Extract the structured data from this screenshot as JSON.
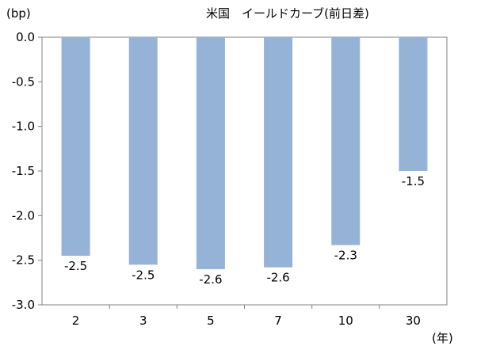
{
  "chart_data": {
    "type": "bar",
    "title": "米国　イールドカーブ(前日差)",
    "ylabel": "(bp)",
    "xlabel": "(年)",
    "categories": [
      "2",
      "3",
      "5",
      "7",
      "10",
      "30"
    ],
    "values": [
      -2.45,
      -2.55,
      -2.6,
      -2.58,
      -2.33,
      -1.5
    ],
    "data_labels": [
      "-2.5",
      "-2.5",
      "-2.6",
      "-2.6",
      "-2.3",
      "-1.5"
    ],
    "ylim": [
      -3.0,
      0.0
    ],
    "yticks": [
      0.0,
      -0.5,
      -1.0,
      -1.5,
      -2.0,
      -2.5,
      -3.0
    ],
    "ytick_labels": [
      "0.0",
      "-0.5",
      "-1.0",
      "-1.5",
      "-2.0",
      "-2.5",
      "-3.0"
    ],
    "bar_color": "#95b3d7",
    "grid": false,
    "legend": "none"
  }
}
